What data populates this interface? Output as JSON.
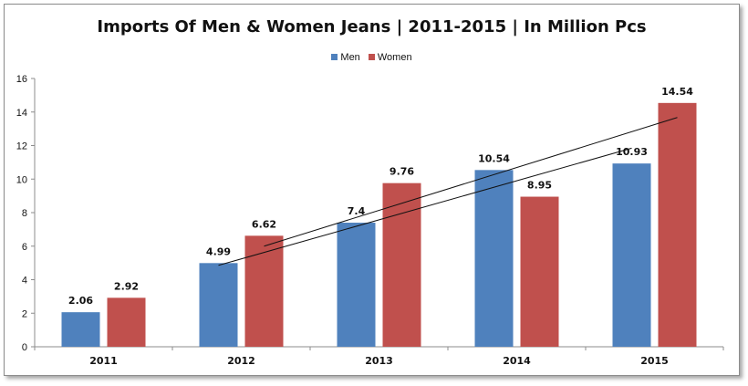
{
  "chart_data": {
    "type": "bar",
    "title": "Imports Of Men & Women Jeans | 2011-2015 | In Million Pcs",
    "xlabel": "",
    "ylabel": "",
    "categories": [
      "2011",
      "2012",
      "2013",
      "2014",
      "2015"
    ],
    "series": [
      {
        "name": "Men",
        "color": "#4f81bd",
        "values": [
          2.06,
          4.99,
          7.4,
          10.54,
          10.93
        ]
      },
      {
        "name": "Women",
        "color": "#c0504d",
        "values": [
          2.92,
          6.62,
          9.76,
          8.95,
          14.54
        ]
      }
    ],
    "ylim": [
      0,
      16
    ],
    "yticks": [
      0,
      2,
      4,
      6,
      8,
      10,
      12,
      14,
      16
    ],
    "grid": false,
    "legend_position": "top-center",
    "trendlines": "linear trendline for each series"
  }
}
